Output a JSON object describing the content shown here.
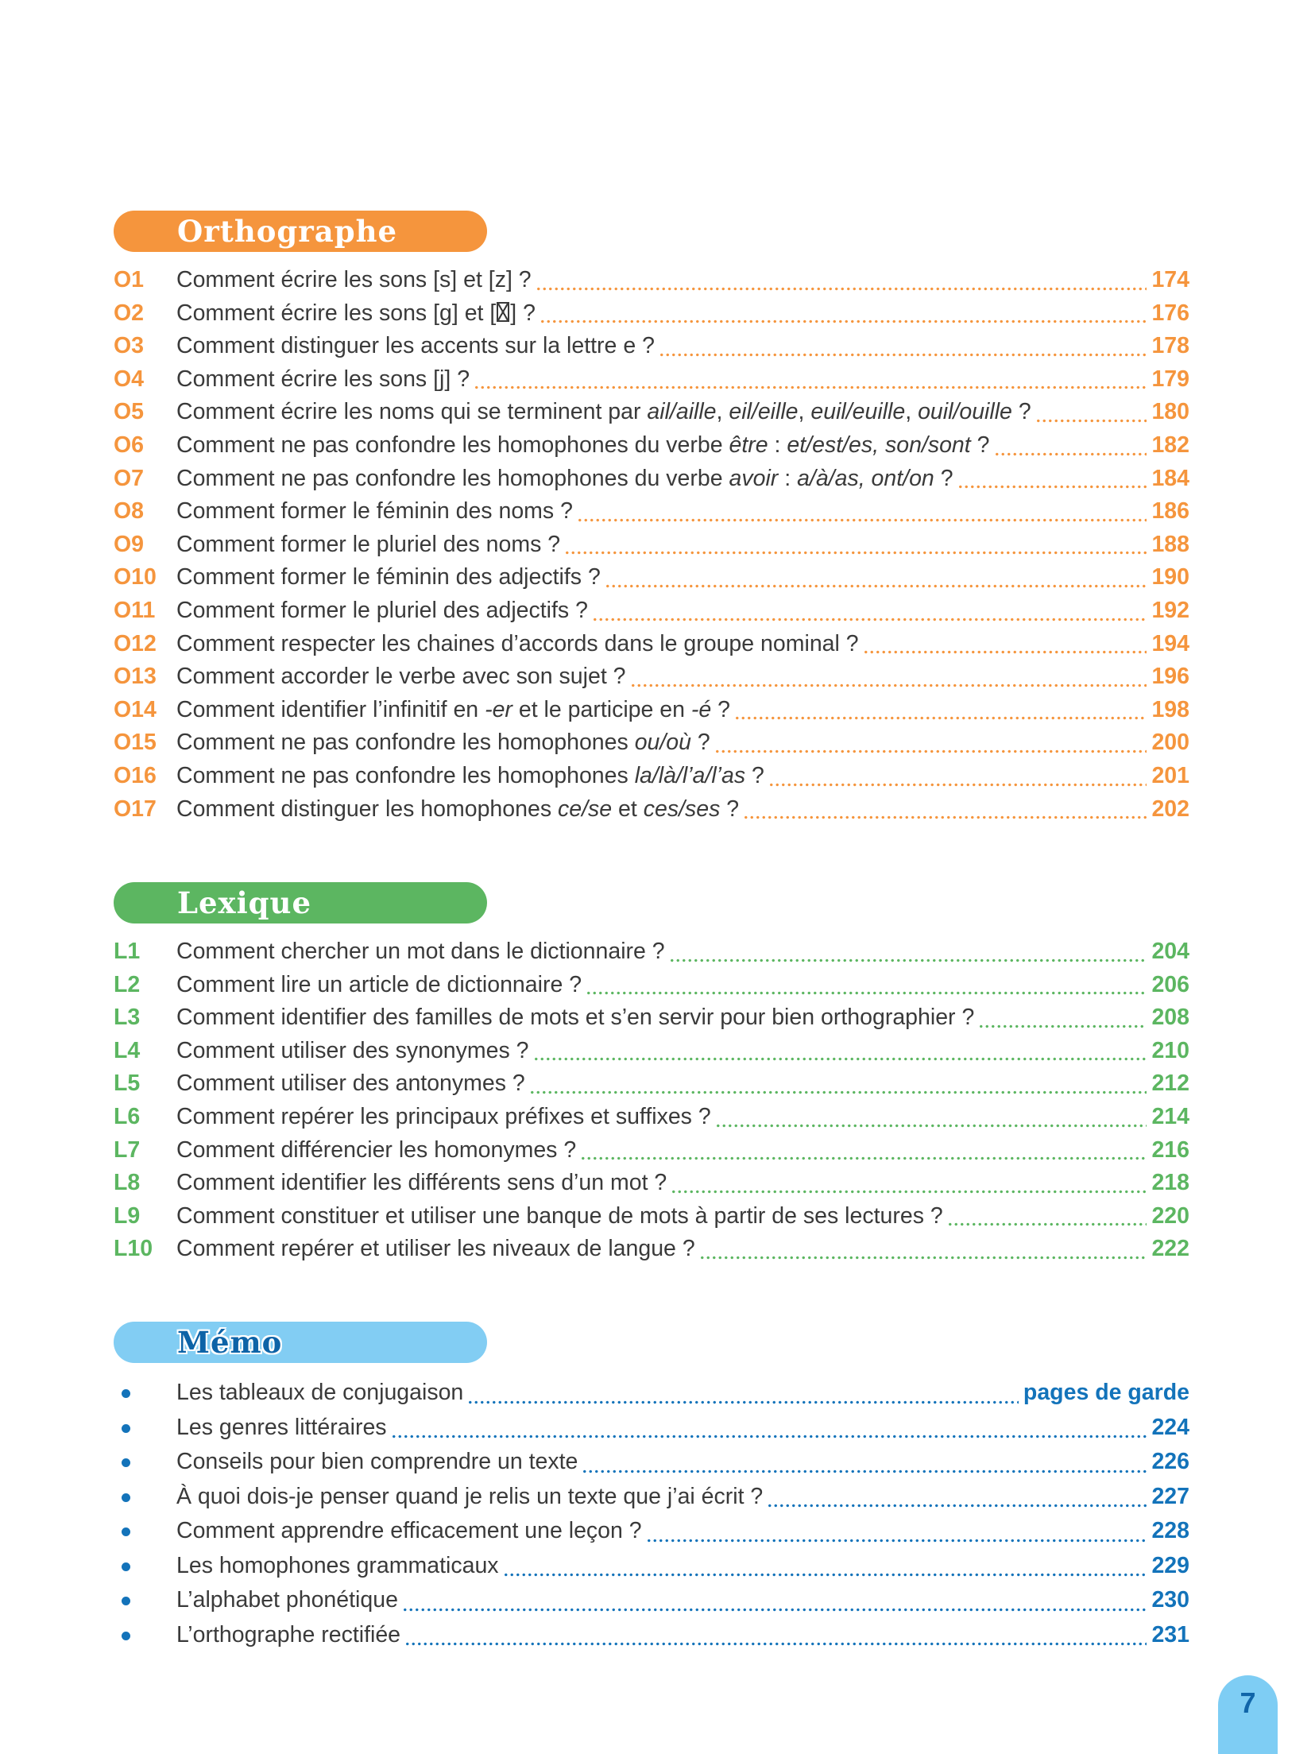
{
  "page": {
    "background": "#ffffff",
    "footer_page_number": "7",
    "footer_tab_bg": "#7ECDF4",
    "footer_num_color": "#1065A9"
  },
  "sections": [
    {
      "id": "orthographe",
      "title": "Orthographe",
      "accent": "#F5953D",
      "pill_bg": "#F5953D",
      "pill_text": "#FFFFFF",
      "outlined_title": false,
      "marker": "code",
      "rows": [
        {
          "code": "O1",
          "parts": [
            {
              "t": "Comment écrire les sons [s] et [z] ?"
            }
          ],
          "page": "174"
        },
        {
          "code": "O2",
          "parts": [
            {
              "t": "Comment écrire les sons [g] et ["
            },
            {
              "tofu": true
            },
            {
              "t": "] ?"
            }
          ],
          "page": "176"
        },
        {
          "code": "O3",
          "parts": [
            {
              "t": "Comment distinguer les accents sur la lettre e ? "
            }
          ],
          "page": "178"
        },
        {
          "code": "O4",
          "parts": [
            {
              "t": "Comment écrire les sons [j] ? "
            }
          ],
          "page": "179"
        },
        {
          "code": "O5",
          "parts": [
            {
              "t": "Comment écrire les noms qui se terminent par "
            },
            {
              "t": "ail/aille",
              "i": true
            },
            {
              "t": ", "
            },
            {
              "t": "eil/eille",
              "i": true
            },
            {
              "t": ", "
            },
            {
              "t": "euil/euille",
              "i": true
            },
            {
              "t": ", "
            },
            {
              "t": "ouil/ouille",
              "i": true
            },
            {
              "t": " ?"
            }
          ],
          "page": "180"
        },
        {
          "code": "O6",
          "parts": [
            {
              "t": "Comment ne pas confondre les homophones du verbe "
            },
            {
              "t": "être",
              "i": true
            },
            {
              "t": " : "
            },
            {
              "t": "et/est/es, son/sont",
              "i": true
            },
            {
              "t": " ?"
            }
          ],
          "page": "182"
        },
        {
          "code": "O7",
          "parts": [
            {
              "t": "Comment ne pas confondre les homophones du verbe "
            },
            {
              "t": "avoir",
              "i": true
            },
            {
              "t": " : "
            },
            {
              "t": "a/à/as, ont/on",
              "i": true
            },
            {
              "t": " ?"
            }
          ],
          "page": "184"
        },
        {
          "code": "O8",
          "parts": [
            {
              "t": "Comment former le féminin des noms ?"
            }
          ],
          "page": "186"
        },
        {
          "code": "O9",
          "parts": [
            {
              "t": "Comment former le pluriel des noms ?"
            }
          ],
          "page": "188"
        },
        {
          "code": "O10",
          "parts": [
            {
              "t": "Comment former le féminin des adjectifs ?"
            }
          ],
          "page": "190"
        },
        {
          "code": "O11",
          "parts": [
            {
              "t": "Comment former le pluriel des adjectifs ?"
            }
          ],
          "page": "192"
        },
        {
          "code": "O12",
          "parts": [
            {
              "t": "Comment respecter les chaines d’accords dans le groupe nominal ?"
            }
          ],
          "page": "194"
        },
        {
          "code": "O13",
          "parts": [
            {
              "t": "Comment accorder le verbe avec son sujet ? "
            }
          ],
          "page": "196"
        },
        {
          "code": "O14",
          "parts": [
            {
              "t": "Comment identifier l’infinitif en "
            },
            {
              "t": "-er",
              "i": true
            },
            {
              "t": " et le participe en "
            },
            {
              "t": "-é",
              "i": true
            },
            {
              "t": " ?"
            }
          ],
          "page": "198"
        },
        {
          "code": "O15",
          "parts": [
            {
              "t": "Comment ne pas confondre les homophones "
            },
            {
              "t": "ou/où",
              "i": true
            },
            {
              "t": " ?"
            }
          ],
          "page": "200"
        },
        {
          "code": "O16",
          "parts": [
            {
              "t": "Comment ne pas confondre les homophones "
            },
            {
              "t": "la/là/l’a/l’as",
              "i": true
            },
            {
              "t": " ?"
            }
          ],
          "page": "201"
        },
        {
          "code": "O17",
          "parts": [
            {
              "t": "Comment distinguer les homophones "
            },
            {
              "t": "ce/se",
              "i": true
            },
            {
              "t": " et "
            },
            {
              "t": "ces/ses",
              "i": true
            },
            {
              "t": " ?"
            }
          ],
          "page": "202"
        }
      ]
    },
    {
      "id": "lexique",
      "title": "Lexique",
      "accent": "#5CB661",
      "pill_bg": "#5CB661",
      "pill_text": "#FFFFFF",
      "outlined_title": false,
      "marker": "code",
      "rows": [
        {
          "code": "L1",
          "parts": [
            {
              "t": "Comment chercher un mot dans le dictionnaire ?"
            }
          ],
          "page": "204"
        },
        {
          "code": "L2",
          "parts": [
            {
              "t": "Comment lire un article de dictionnaire ?"
            }
          ],
          "page": "206"
        },
        {
          "code": "L3",
          "parts": [
            {
              "t": "Comment identifier des familles de mots et s’en servir pour bien orthographier ?"
            }
          ],
          "page": "208"
        },
        {
          "code": "L4",
          "parts": [
            {
              "t": "Comment utiliser des synonymes ?"
            }
          ],
          "page": "210"
        },
        {
          "code": "L5",
          "parts": [
            {
              "t": "Comment utiliser des antonymes ?"
            }
          ],
          "page": "212"
        },
        {
          "code": "L6",
          "parts": [
            {
              "t": "Comment repérer les principaux préfixes et suffixes ? "
            }
          ],
          "page": "214"
        },
        {
          "code": "L7",
          "parts": [
            {
              "t": "Comment différencier les homonymes ?"
            }
          ],
          "page": "216"
        },
        {
          "code": "L8",
          "parts": [
            {
              "t": "Comment identifier les différents sens d’un mot ?"
            }
          ],
          "page": "218"
        },
        {
          "code": "L9",
          "parts": [
            {
              "t": "Comment constituer et utiliser une banque de mots à partir de ses lectures ? "
            }
          ],
          "page": "220"
        },
        {
          "code": "L10",
          "parts": [
            {
              "t": "Comment repérer et utiliser les niveaux de langue ?"
            }
          ],
          "page": "222"
        }
      ]
    },
    {
      "id": "memo",
      "title": "Mémo",
      "accent": "#1373BA",
      "pill_bg": "#82CDF3",
      "pill_text": "#0D63A7",
      "outlined_title": true,
      "marker": "bullet",
      "rows": [
        {
          "parts": [
            {
              "t": "Les tableaux de conjugaison "
            }
          ],
          "page": "pages de garde"
        },
        {
          "parts": [
            {
              "t": "Les genres littéraires"
            }
          ],
          "page": "224"
        },
        {
          "parts": [
            {
              "t": "Conseils pour bien comprendre un texte"
            }
          ],
          "page": "226"
        },
        {
          "parts": [
            {
              "t": "À quoi dois-je penser quand je relis un texte que j’ai écrit ?"
            }
          ],
          "page": "227"
        },
        {
          "parts": [
            {
              "t": "Comment apprendre efficacement une leçon ?"
            }
          ],
          "page": "228"
        },
        {
          "parts": [
            {
              "t": "Les homophones grammaticaux"
            }
          ],
          "page": "229"
        },
        {
          "parts": [
            {
              "t": "L’alphabet phonétique"
            }
          ],
          "page": "230"
        },
        {
          "parts": [
            {
              "t": "L’orthographe rectifiée"
            }
          ],
          "page": "231"
        }
      ]
    }
  ]
}
